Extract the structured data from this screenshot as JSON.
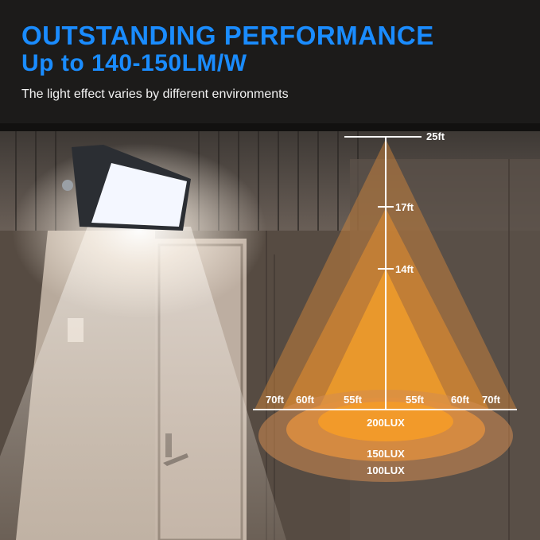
{
  "headline": {
    "line1": "OUTSTANDING PERFORMANCE",
    "line2": "Up to 140-150LM/W"
  },
  "subtitle": "The light effect varies by different environments",
  "colors": {
    "accent": "#1a8cff",
    "cone_outer": "#d98a3a",
    "cone_mid": "#e8902e",
    "cone_inner": "#f5a12a"
  },
  "heights": {
    "h1": "25ft",
    "h2": "17ft",
    "h3": "14ft"
  },
  "widths": {
    "left_outer": "70ft",
    "left_mid": "60ft",
    "left_inner": "55ft",
    "right_inner": "55ft",
    "right_mid": "60ft",
    "right_outer": "70ft"
  },
  "lux": {
    "inner": "200LUX",
    "mid": "150LUX",
    "outer": "100LUX"
  }
}
